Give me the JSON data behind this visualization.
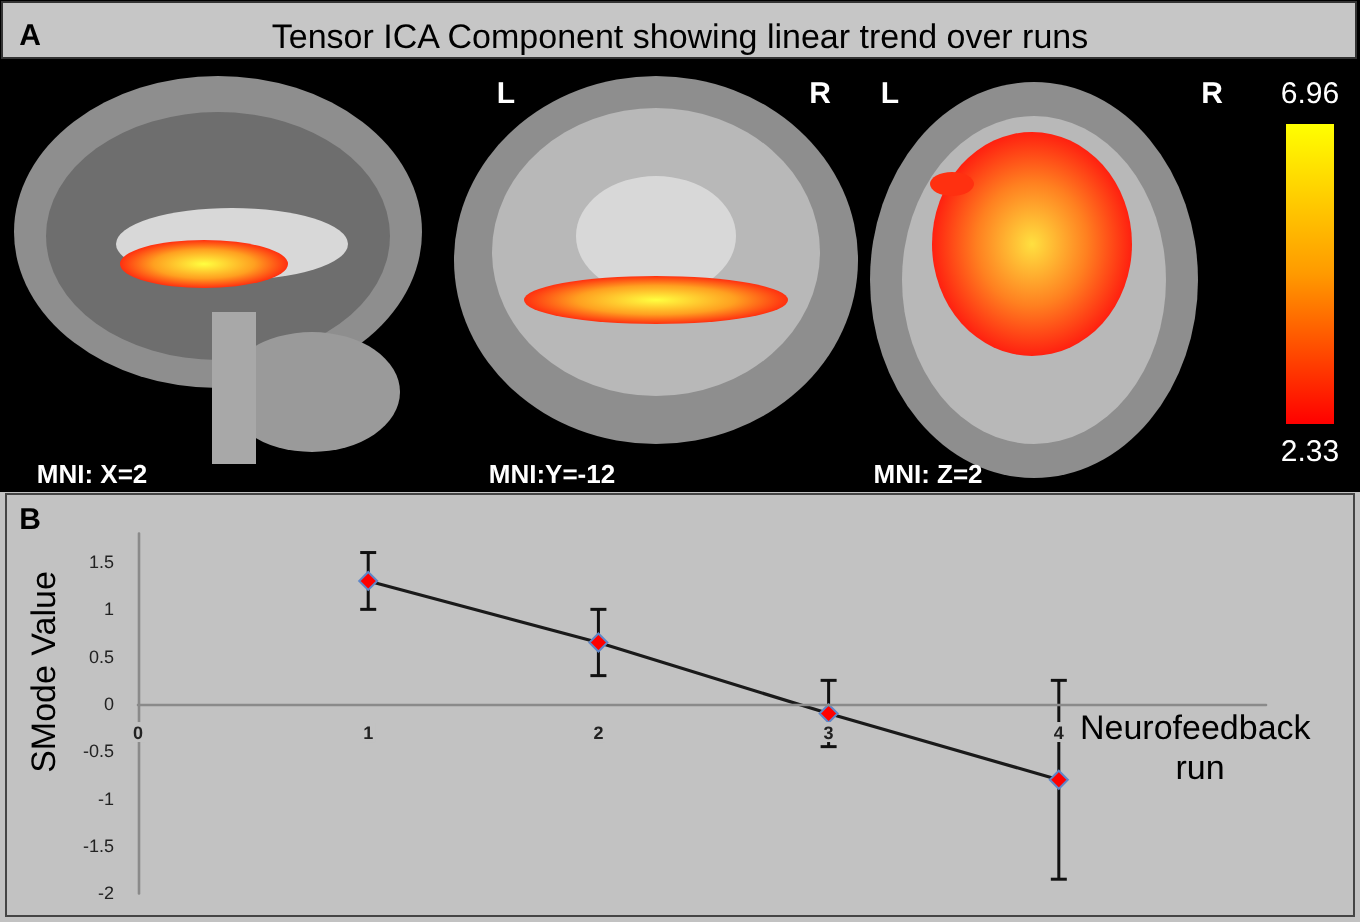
{
  "chart_data": [
    {
      "type": "other",
      "title": "Tensor ICA Component showing linear trend over runs",
      "annotations": [
        "A",
        "L",
        "R",
        "L",
        "R",
        "MNI: X=2",
        "MNI:Y=-12",
        "MNI: Z=2",
        "6.96",
        "2.33"
      ]
    },
    {
      "type": "line",
      "annotations": [
        "B"
      ],
      "xlabel": "Neurofeedback run",
      "ylabel": "SMode Value",
      "x": [
        1,
        2,
        3,
        4
      ],
      "series": [
        {
          "color": "#ff0000",
          "values": [
            1.3,
            0.65,
            -0.1,
            -0.8
          ],
          "errors": [
            [
              1.0,
              1.6
            ],
            [
              0.3,
              1.0
            ],
            [
              -0.45,
              0.25
            ],
            [
              -1.85,
              0.25
            ]
          ]
        }
      ],
      "xlim": [
        0,
        4.9
      ],
      "xticks": [
        0,
        1,
        2,
        3,
        4
      ],
      "ylim": [
        -2,
        1.8
      ],
      "yticks": [
        -2,
        -1.5,
        -1,
        -0.5,
        0,
        0.5,
        1,
        1.5
      ],
      "grid": false,
      "marker": "diamond",
      "line_style": "solid"
    }
  ]
}
